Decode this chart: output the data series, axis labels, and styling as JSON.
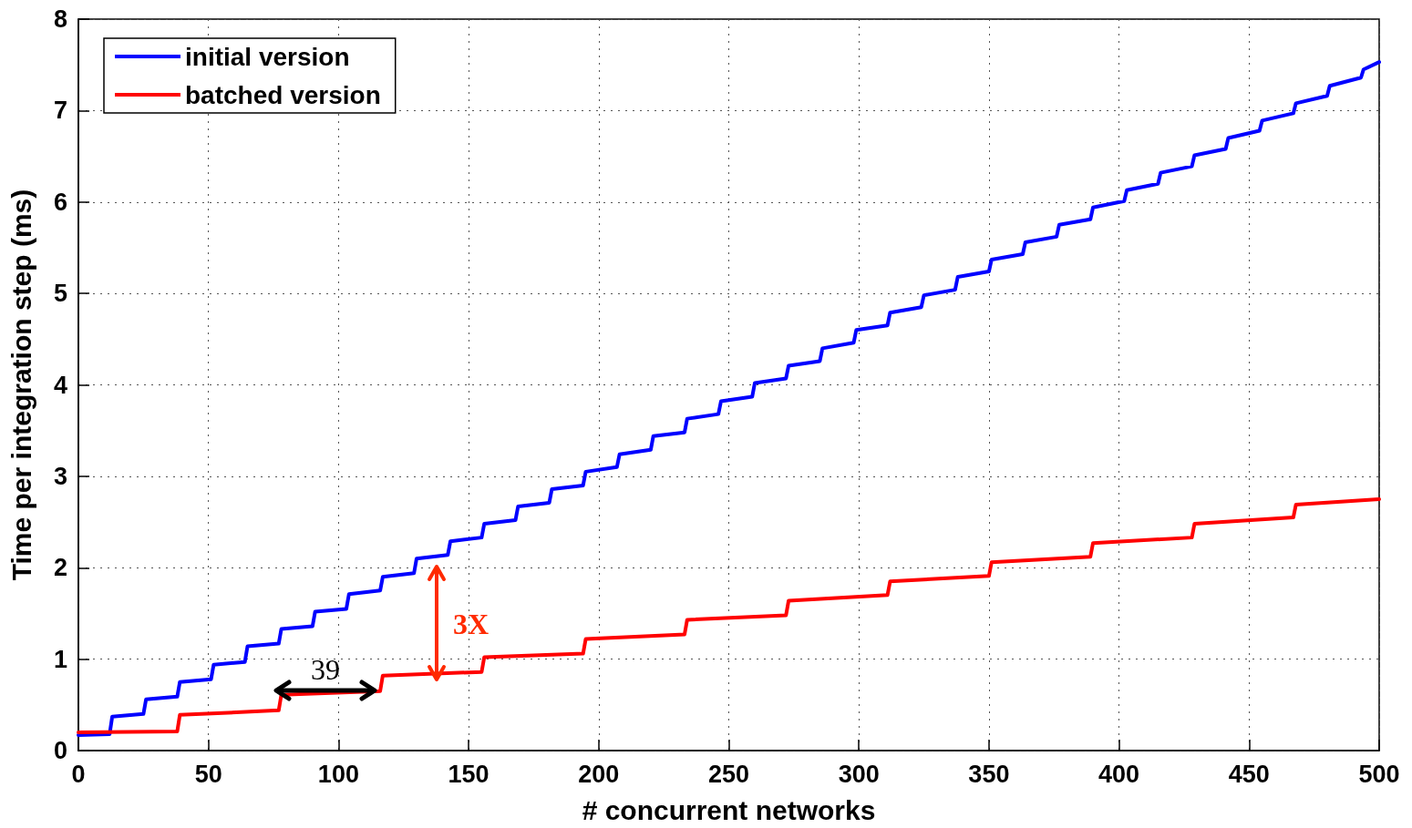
{
  "chart_data": {
    "type": "line",
    "xlabel": "# concurrent networks",
    "ylabel": "Time per integration step (ms)",
    "xlim": [
      0,
      500
    ],
    "xticks": [
      0,
      50,
      100,
      150,
      200,
      250,
      300,
      350,
      400,
      450,
      500
    ],
    "ylim": [
      0,
      8
    ],
    "yticks": [
      0,
      1,
      2,
      3,
      4,
      5,
      6,
      7,
      8
    ],
    "grid": true,
    "legend": "top left",
    "line_style": "solid",
    "marker": "none",
    "series": [
      {
        "name": "initial version",
        "color": "#0000ff",
        "x": [
          0,
          12,
          13,
          25,
          26,
          38,
          39,
          51,
          52,
          64,
          65,
          77,
          78,
          90,
          91,
          103,
          104,
          116,
          117,
          129,
          130,
          142,
          143,
          155,
          156,
          168,
          169,
          181,
          182,
          194,
          195,
          207,
          208,
          220,
          221,
          233,
          234,
          246,
          247,
          259,
          260,
          272,
          273,
          285,
          286,
          298,
          299,
          311,
          312,
          324,
          325,
          337,
          338,
          350,
          351,
          363,
          364,
          376,
          377,
          389,
          390,
          402,
          403,
          415,
          416,
          428,
          429,
          441,
          442,
          454,
          455,
          467,
          468,
          480,
          481,
          493,
          494,
          500
        ],
        "values": [
          0.17,
          0.18,
          0.37,
          0.4,
          0.56,
          0.59,
          0.75,
          0.78,
          0.94,
          0.97,
          1.14,
          1.17,
          1.33,
          1.36,
          1.52,
          1.55,
          1.71,
          1.75,
          1.9,
          1.94,
          2.1,
          2.14,
          2.29,
          2.33,
          2.48,
          2.52,
          2.67,
          2.71,
          2.86,
          2.9,
          3.05,
          3.1,
          3.24,
          3.29,
          3.44,
          3.48,
          3.63,
          3.68,
          3.82,
          3.87,
          4.02,
          4.07,
          4.21,
          4.26,
          4.4,
          4.46,
          4.6,
          4.65,
          4.79,
          4.85,
          4.98,
          5.04,
          5.18,
          5.24,
          5.37,
          5.43,
          5.56,
          5.62,
          5.75,
          5.81,
          5.94,
          6.01,
          6.13,
          6.2,
          6.32,
          6.39,
          6.51,
          6.58,
          6.7,
          6.78,
          6.89,
          6.97,
          7.08,
          7.16,
          7.27,
          7.36,
          7.45,
          7.53
        ]
      },
      {
        "name": "batched version",
        "color": "#ff0000",
        "x": [
          0,
          38,
          39,
          77,
          78,
          116,
          117,
          155,
          156,
          194,
          195,
          233,
          234,
          272,
          273,
          311,
          312,
          350,
          351,
          389,
          390,
          428,
          429,
          467,
          468,
          500
        ],
        "values": [
          0.2,
          0.21,
          0.39,
          0.44,
          0.61,
          0.65,
          0.82,
          0.86,
          1.02,
          1.06,
          1.22,
          1.27,
          1.43,
          1.48,
          1.64,
          1.7,
          1.85,
          1.91,
          2.06,
          2.12,
          2.27,
          2.33,
          2.48,
          2.55,
          2.69,
          2.75
        ]
      }
    ],
    "annotations": [
      "39",
      "3X"
    ]
  }
}
